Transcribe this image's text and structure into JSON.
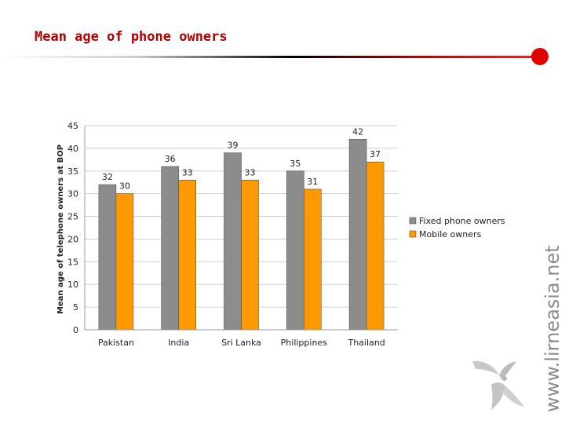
{
  "slide": {
    "title": "Mean age of phone owners",
    "side_text": "www.lirneasia.net",
    "accent_color": "#e00000"
  },
  "chart_data": {
    "type": "bar",
    "categories": [
      "Pakistan",
      "India",
      "Sri Lanka",
      "Philippines",
      "Thailand"
    ],
    "series": [
      {
        "name": "Fixed phone owners",
        "values": [
          32,
          36,
          39,
          35,
          42
        ],
        "color": "#8c8c8c"
      },
      {
        "name": "Mobile owners",
        "values": [
          30,
          33,
          33,
          31,
          37
        ],
        "color": "#ff9900"
      }
    ],
    "ylabel": "Mean age of telephone owners at BOP",
    "ylim": [
      0,
      45
    ],
    "yticks": [
      0,
      5,
      10,
      15,
      20,
      25,
      30,
      35,
      40,
      45
    ],
    "grid": true,
    "legend": "right"
  }
}
